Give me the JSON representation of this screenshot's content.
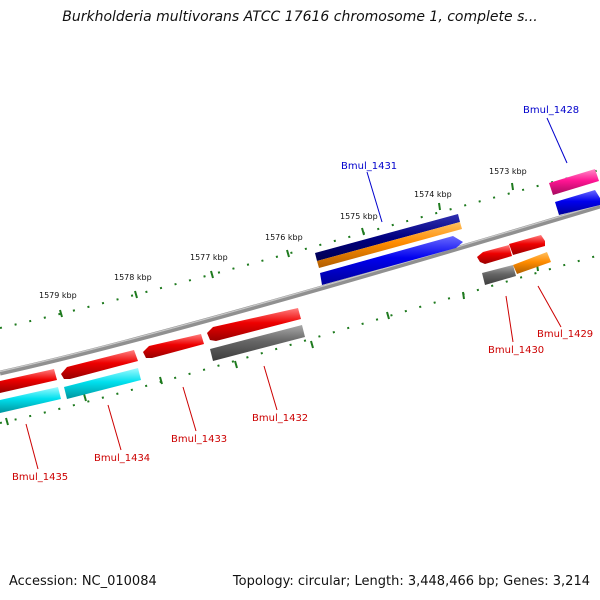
{
  "title": "Burkholderia multivorans ATCC 17616 chromosome 1, complete s...",
  "footer": {
    "accession": "Accession: NC_010084",
    "summary": "Topology: circular; Length: 3,448,466 bp; Genes: 3,214"
  },
  "ticks": [
    "1573 kbp",
    "1574 kbp",
    "1575 kbp",
    "1576 kbp",
    "1577 kbp",
    "1578 kbp",
    "1579 kbp"
  ],
  "genes": [
    {
      "label": "Bmul_1428",
      "color": "#0000cc"
    },
    {
      "label": "Bmul_1429",
      "color": "#cc0000"
    },
    {
      "label": "Bmul_1430",
      "color": "#cc0000"
    },
    {
      "label": "Bmul_1431",
      "color": "#0000cc"
    },
    {
      "label": "Bmul_1432",
      "color": "#cc0000"
    },
    {
      "label": "Bmul_1433",
      "color": "#cc0000"
    },
    {
      "label": "Bmul_1434",
      "color": "#cc0000"
    },
    {
      "label": "Bmul_1435",
      "color": "#cc0000"
    }
  ],
  "colors": {
    "backbone": "#8a8a8a",
    "tick_marks": "#1e7a1e",
    "red": "#ee0000",
    "blue": "#0000ee",
    "navy": "#000080",
    "orange": "#ff8c00",
    "cyan": "#00e0ee",
    "gray": "#666666",
    "pink": "#ff1493"
  }
}
